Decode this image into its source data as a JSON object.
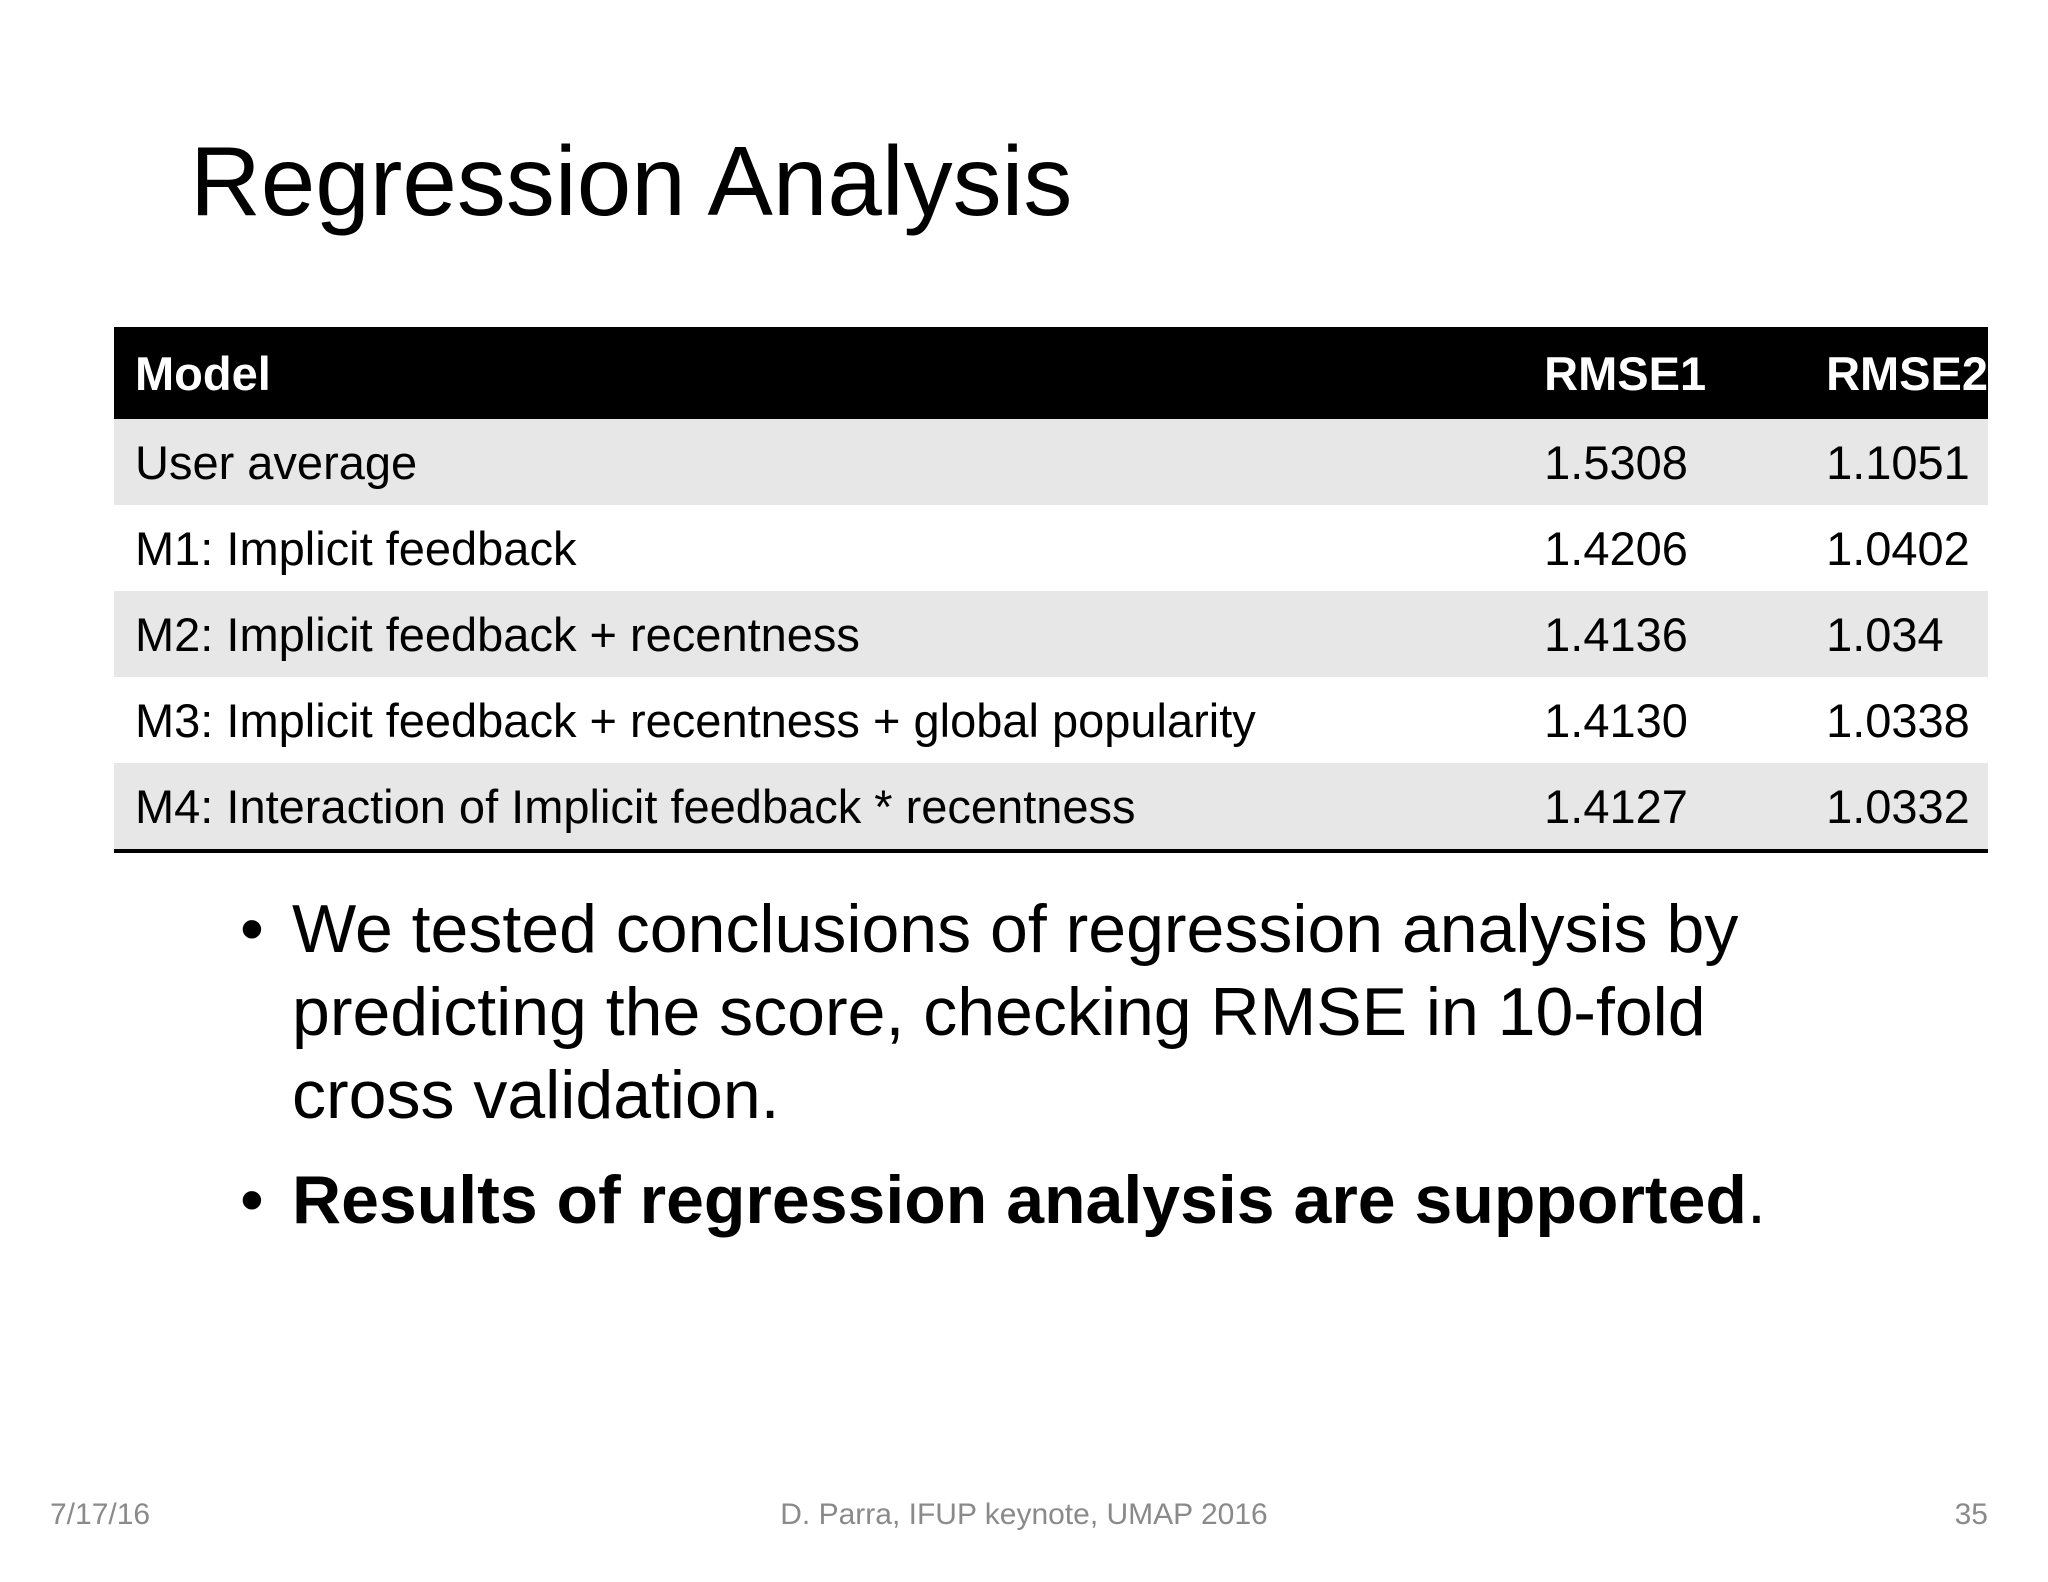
{
  "slide": {
    "title": "Regression Analysis"
  },
  "table": {
    "headers": [
      "Model",
      "RMSE1",
      "RMSE2"
    ],
    "rows": [
      [
        "User average",
        "1.5308",
        "1.1051"
      ],
      [
        "M1: Implicit feedback",
        "1.4206",
        "1.0402"
      ],
      [
        "M2: Implicit feedback + recentness",
        "1.4136",
        "1.034"
      ],
      [
        "M3: Implicit feedback + recentness + global popularity",
        "1.4130",
        "1.0338"
      ],
      [
        "M4: Interaction of Implicit feedback * recentness",
        "1.4127",
        "1.0332"
      ]
    ]
  },
  "bullets": {
    "symbol": "•",
    "items": [
      {
        "text": "We tested conclusions of regression analysis by predicting the score, checking RMSE in 10-fold cross validation."
      },
      {
        "bold": "Results of regression analysis are supported",
        "suffix": "."
      }
    ]
  },
  "footer": {
    "date": "7/17/16",
    "center": "D. Parra, IFUP keynote, UMAP 2016",
    "page": "35"
  }
}
